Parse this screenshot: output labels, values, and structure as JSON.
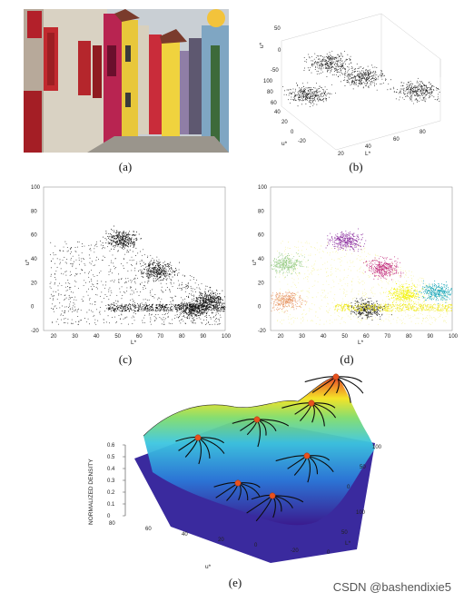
{
  "captions": {
    "a": "(a)",
    "b": "(b)",
    "c": "(c)",
    "d": "(d)",
    "e": "(e)"
  },
  "watermark": "CSDN @bashendixie5",
  "chart_data": [
    {
      "type": "scatter",
      "panel": "b",
      "dims": 3,
      "axes": {
        "x": {
          "label": "L*",
          "ticks": [
            "20",
            "40",
            "60",
            "80"
          ]
        },
        "y": {
          "label": "u*",
          "ticks": [
            "100",
            "80",
            "60",
            "40",
            "20",
            "0",
            "-20"
          ]
        },
        "z": {
          "label": "v*",
          "ticks": [
            "50",
            "0",
            "-50"
          ]
        }
      }
    },
    {
      "type": "scatter",
      "panel": "c",
      "xlabel": "L*",
      "ylabel": "u*",
      "xlim": [
        15,
        100
      ],
      "ylim": [
        -20,
        100
      ],
      "xticks": [
        "20",
        "30",
        "40",
        "50",
        "60",
        "70",
        "80",
        "90",
        "100"
      ],
      "yticks": [
        "-20",
        "0",
        "20",
        "40",
        "60",
        "80",
        "100"
      ],
      "clusters": [
        {
          "x": 52,
          "y": 56
        },
        {
          "x": 68,
          "y": 30
        },
        {
          "x": 93,
          "y": 5
        },
        {
          "x": 85,
          "y": -2
        }
      ]
    },
    {
      "type": "scatter",
      "panel": "d",
      "xlabel": "L*",
      "ylabel": "u*",
      "xlim": [
        15,
        100
      ],
      "ylim": [
        -20,
        100
      ],
      "xticks": [
        "20",
        "30",
        "40",
        "50",
        "60",
        "70",
        "80",
        "90",
        "100"
      ],
      "yticks": [
        "-20",
        "0",
        "20",
        "40",
        "60",
        "80",
        "100"
      ],
      "clusters": [
        {
          "x": 50,
          "y": 55,
          "color": "#8b2d9e"
        },
        {
          "x": 68,
          "y": 32,
          "color": "#c0287a"
        },
        {
          "x": 78,
          "y": 10,
          "color": "#f2f20a"
        },
        {
          "x": 93,
          "y": 12,
          "color": "#1aa6b7"
        },
        {
          "x": 60,
          "y": -2,
          "color": "#222222"
        },
        {
          "x": 22,
          "y": 35,
          "color": "#9acd8a"
        },
        {
          "x": 22,
          "y": 5,
          "color": "#e89a6a"
        }
      ]
    },
    {
      "type": "surface",
      "panel": "e",
      "zlabel": "NORMALIZED DENSITY",
      "zticks": [
        "0",
        "0.1",
        "0.2",
        "0.3",
        "0.4",
        "0.5",
        "0.6"
      ],
      "u_label": "u*",
      "u_ticks": [
        "80",
        "60",
        "40",
        "20",
        "0",
        "-20"
      ],
      "L_label": "L*",
      "L_ticks": [
        "0",
        "50",
        "100"
      ],
      "v_ticks": [
        "100",
        "50",
        "0"
      ]
    }
  ]
}
